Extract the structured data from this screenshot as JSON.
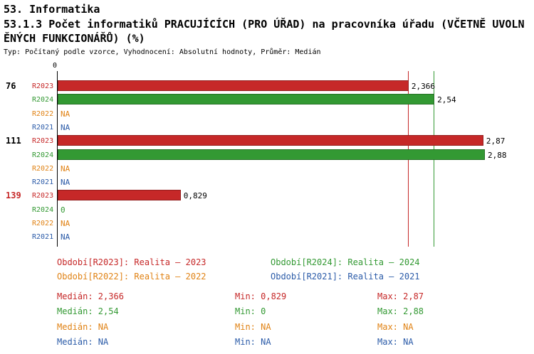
{
  "header": {
    "line1": "53. Informatika",
    "line2": "53.1.3 Počet informatiků PRACUJÍCÍCH (PRO ÚŘAD) na pracovníka úřadu (VČETNĚ UVOLNĚNÝCH FUNKCIONÁŘŮ) (%)",
    "line3": "Typ: Počítaný podle vzorce, Vyhodnocení: Absolutní hodnoty, Průměr: Medián"
  },
  "colors": {
    "r2023": "#C62828",
    "r2024": "#339933",
    "r2022": "#E08214",
    "r2021": "#2B5BA8",
    "text": "#000000"
  },
  "chart_data": {
    "type": "bar",
    "orientation": "horizontal",
    "title": "53.1.3 Počet informatiků PRACUJÍCÍCH (PRO ÚŘAD) na pracovníka úřadu (VČETNĚ UVOLNĚNÝCH FUNKCIONÁŘŮ) (%)",
    "x_zero_label": "0",
    "xlim": [
      0,
      3.0
    ],
    "grid": "off",
    "series_names": [
      "R2023",
      "R2024",
      "R2022",
      "R2021"
    ],
    "median_lines": [
      {
        "series": "R2023",
        "value": 2.366,
        "color_key": "r2023"
      },
      {
        "series": "R2024",
        "value": 2.54,
        "color_key": "r2024"
      }
    ],
    "groups": [
      {
        "label": "76",
        "label_color_key": "text",
        "rows": [
          {
            "series": "R2023",
            "value": 2.366,
            "display": "2,366",
            "color_key": "r2023"
          },
          {
            "series": "R2024",
            "value": 2.54,
            "display": "2,54",
            "color_key": "r2024"
          },
          {
            "series": "R2022",
            "value": null,
            "display": "NA",
            "color_key": "r2022"
          },
          {
            "series": "R2021",
            "value": null,
            "display": "NA",
            "color_key": "r2021"
          }
        ]
      },
      {
        "label": "111",
        "label_color_key": "text",
        "rows": [
          {
            "series": "R2023",
            "value": 2.87,
            "display": "2,87",
            "color_key": "r2023"
          },
          {
            "series": "R2024",
            "value": 2.88,
            "display": "2,88",
            "color_key": "r2024"
          },
          {
            "series": "R2022",
            "value": null,
            "display": "NA",
            "color_key": "r2022"
          },
          {
            "series": "R2021",
            "value": null,
            "display": "NA",
            "color_key": "r2021"
          }
        ]
      },
      {
        "label": "139",
        "label_color_key": "r2023",
        "rows": [
          {
            "series": "R2023",
            "value": 0.829,
            "display": "0,829",
            "color_key": "r2023"
          },
          {
            "series": "R2024",
            "value": 0,
            "display": "0",
            "color_key": "r2024"
          },
          {
            "series": "R2022",
            "value": null,
            "display": "NA",
            "color_key": "r2022"
          },
          {
            "series": "R2021",
            "value": null,
            "display": "NA",
            "color_key": "r2021"
          }
        ]
      }
    ]
  },
  "legend": [
    {
      "text": "Období[R2023]: Realita – 2023",
      "color_key": "r2023"
    },
    {
      "text": "Období[R2024]: Realita – 2024",
      "color_key": "r2024"
    },
    {
      "text": "Období[R2022]: Realita – 2022",
      "color_key": "r2022"
    },
    {
      "text": "Období[R2021]: Realita – 2021",
      "color_key": "r2021"
    }
  ],
  "stats": [
    {
      "median": "Medián: 2,366",
      "min": "Min: 0,829",
      "max": "Max: 2,87",
      "color_key": "r2023"
    },
    {
      "median": "Medián: 2,54",
      "min": "Min: 0",
      "max": "Max: 2,88",
      "color_key": "r2024"
    },
    {
      "median": "Medián: NA",
      "min": "Min: NA",
      "max": "Max: NA",
      "color_key": "r2022"
    },
    {
      "median": "Medián: NA",
      "min": "Min: NA",
      "max": "Max: NA",
      "color_key": "r2021"
    }
  ]
}
